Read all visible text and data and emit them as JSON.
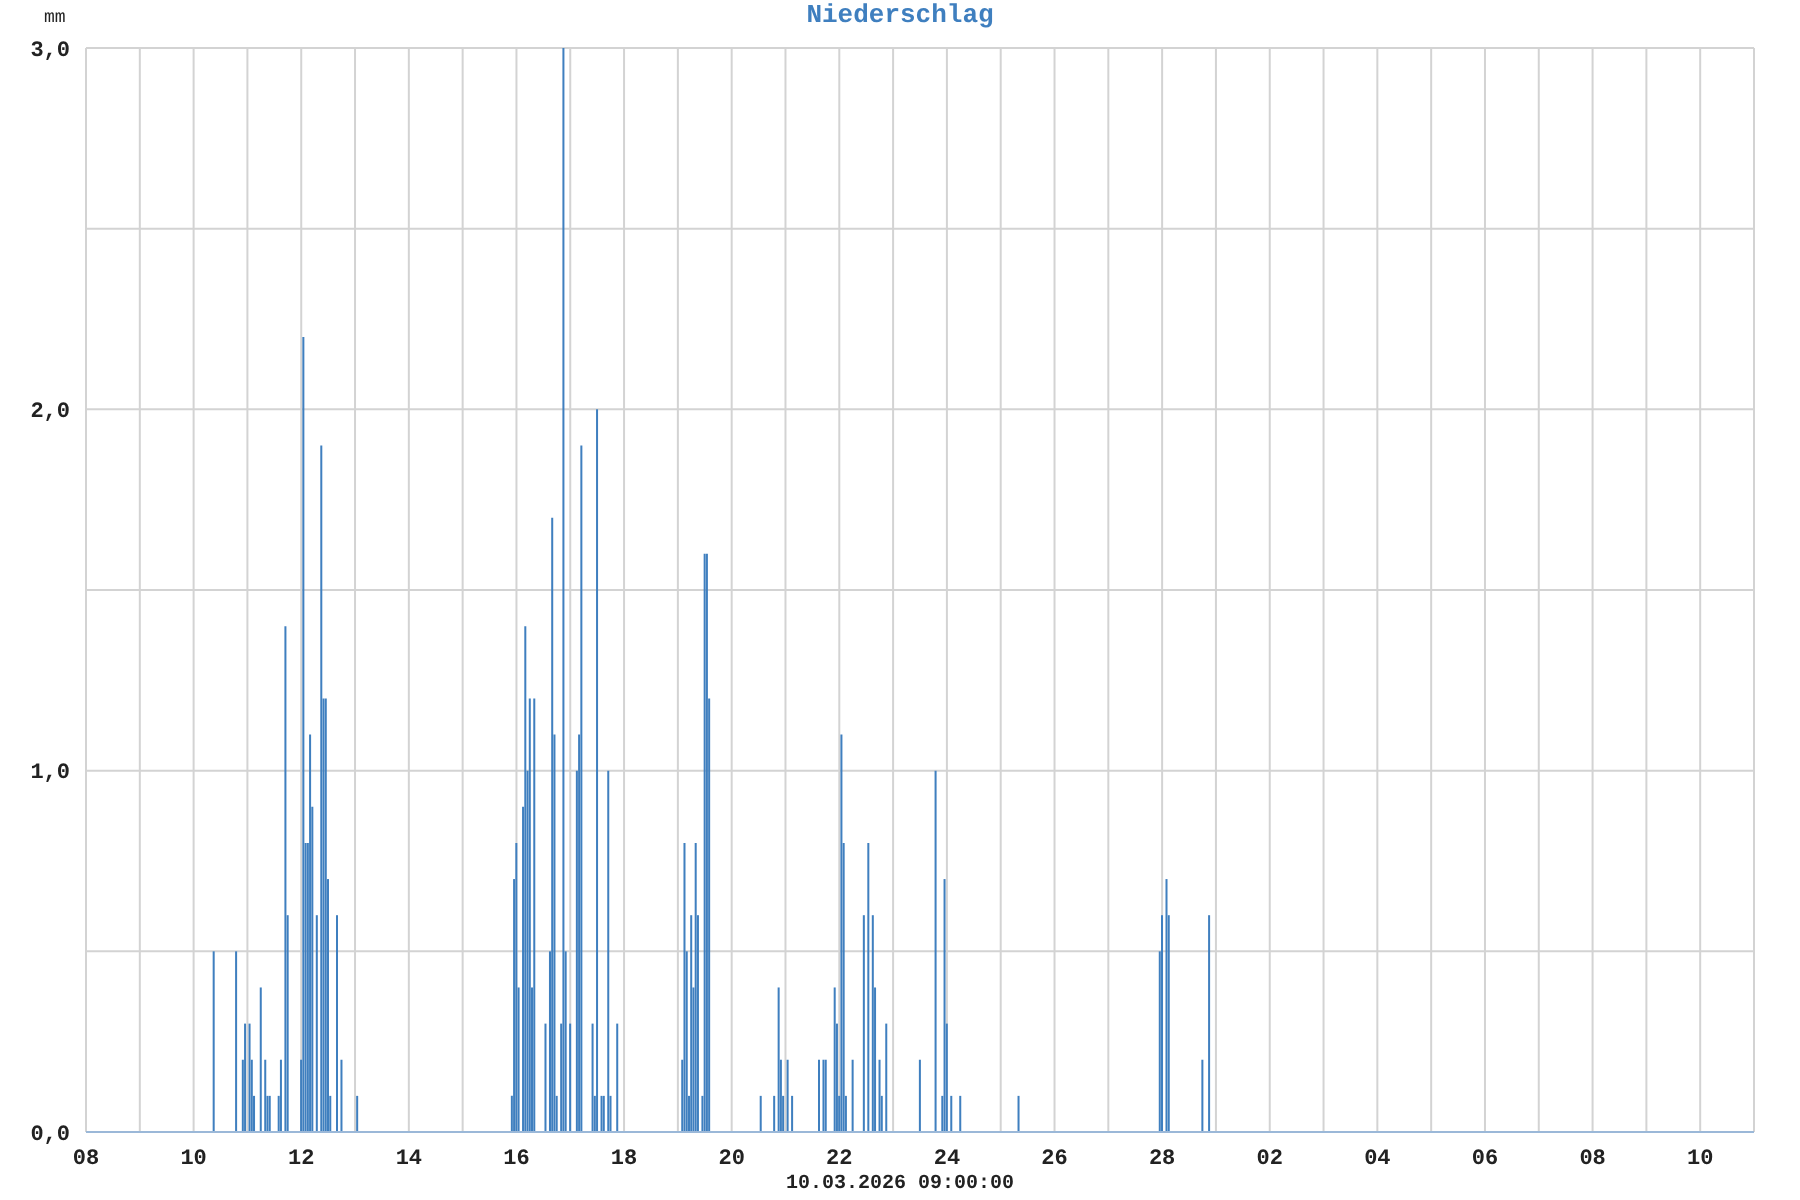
{
  "chart_data": {
    "type": "bar",
    "title": "Niederschlag",
    "ylabel": "mm",
    "xlabel": "10.03.2026 09:00:00",
    "color": "#3f7fbf",
    "grid": true,
    "x": [
      "2026-02-10T09:00",
      "2026-02-10T19:00",
      "2026-02-10T22:00",
      "2026-02-10T23:00",
      "2026-02-11T01:00",
      "2026-02-11T02:00",
      "2026-02-11T03:00",
      "2026-02-11T06:00",
      "2026-02-11T08:00",
      "2026-02-11T09:00",
      "2026-02-11T10:00",
      "2026-02-11T14:00",
      "2026-02-11T15:00",
      "2026-02-11T17:00",
      "2026-02-11T18:00",
      "2026-02-12T00:00",
      "2026-02-12T01:00",
      "2026-02-12T02:00",
      "2026-02-12T03:00",
      "2026-02-12T04:00",
      "2026-02-12T05:00",
      "2026-02-12T07:00",
      "2026-02-12T09:00",
      "2026-02-12T10:00",
      "2026-02-12T11:00",
      "2026-02-12T12:00",
      "2026-02-12T13:00",
      "2026-02-12T16:00",
      "2026-02-12T18:00",
      "2026-02-13T01:00",
      "2026-02-15T22:00",
      "2026-02-15T23:00",
      "2026-02-16T00:00",
      "2026-02-16T01:00",
      "2026-02-16T03:00",
      "2026-02-16T04:00",
      "2026-02-16T05:00",
      "2026-02-16T06:00",
      "2026-02-16T07:00",
      "2026-02-16T08:00",
      "2026-02-16T13:00",
      "2026-02-16T15:00",
      "2026-02-16T16:00",
      "2026-02-16T17:00",
      "2026-02-16T18:00",
      "2026-02-16T20:00",
      "2026-02-16T21:00",
      "2026-02-16T22:00",
      "2026-02-17T00:00",
      "2026-02-17T03:00",
      "2026-02-17T04:00",
      "2026-02-17T05:00",
      "2026-02-17T10:00",
      "2026-02-17T11:00",
      "2026-02-17T12:00",
      "2026-02-17T14:00",
      "2026-02-17T15:00",
      "2026-02-17T17:00",
      "2026-02-17T18:00",
      "2026-02-17T21:00",
      "2026-02-19T02:00",
      "2026-02-19T03:00",
      "2026-02-19T04:00",
      "2026-02-19T05:00",
      "2026-02-19T06:00",
      "2026-02-19T07:00",
      "2026-02-19T08:00",
      "2026-02-19T09:00",
      "2026-02-19T11:00",
      "2026-02-19T12:00",
      "2026-02-19T13:00",
      "2026-02-19T14:00",
      "2026-02-20T13:00",
      "2026-02-20T19:00",
      "2026-02-20T21:00",
      "2026-02-20T22:00",
      "2026-02-20T23:00",
      "2026-02-21T01:00",
      "2026-02-21T03:00",
      "2026-02-21T15:00",
      "2026-02-21T17:00",
      "2026-02-21T18:00",
      "2026-02-21T22:00",
      "2026-02-21T23:00",
      "2026-02-22T00:00",
      "2026-02-22T01:00",
      "2026-02-22T02:00",
      "2026-02-22T03:00",
      "2026-02-22T06:00",
      "2026-02-22T11:00",
      "2026-02-22T13:00",
      "2026-02-22T15:00",
      "2026-02-22T16:00",
      "2026-02-22T18:00",
      "2026-02-22T19:00",
      "2026-02-22T21:00",
      "2026-02-23T12:00",
      "2026-02-23T19:00",
      "2026-02-23T22:00",
      "2026-02-23T23:00",
      "2026-02-24T00:00",
      "2026-02-24T02:00",
      "2026-02-24T06:00",
      "2026-02-25T08:00",
      "2026-02-27T23:00",
      "2026-02-28T00:00",
      "2026-02-28T02:00",
      "2026-02-28T03:00",
      "2026-02-28T18:00",
      "2026-02-28T21:00"
    ],
    "values": [
      0.5,
      0.5,
      0.2,
      0.3,
      0.3,
      0.2,
      0.1,
      0.4,
      0.2,
      0.1,
      0.1,
      0.1,
      0.2,
      1.4,
      0.6,
      0.2,
      2.2,
      0.8,
      0.8,
      1.1,
      0.9,
      0.6,
      1.9,
      1.2,
      1.2,
      0.7,
      0.1,
      0.6,
      0.2,
      0.1,
      0.1,
      0.7,
      0.8,
      0.4,
      0.9,
      1.4,
      1.0,
      1.2,
      0.4,
      1.2,
      0.3,
      0.5,
      1.7,
      1.1,
      0.1,
      0.3,
      3.0,
      0.5,
      0.3,
      1.0,
      1.1,
      1.9,
      0.3,
      0.1,
      2.0,
      0.1,
      0.1,
      1.0,
      0.1,
      0.3,
      0.2,
      0.8,
      0.5,
      0.1,
      0.6,
      0.4,
      0.8,
      0.6,
      0.1,
      1.6,
      1.6,
      1.2,
      0.1,
      0.1,
      0.4,
      0.2,
      0.1,
      0.2,
      0.1,
      0.2,
      0.2,
      0.2,
      0.4,
      0.3,
      0.1,
      1.1,
      0.8,
      0.1,
      0.2,
      0.6,
      0.8,
      0.6,
      0.4,
      0.2,
      0.1,
      0.3,
      0.2,
      1.0,
      0.1,
      0.7,
      0.3,
      0.1,
      0.1,
      0.1,
      0.5,
      0.6,
      0.7,
      0.6,
      0.2,
      0.6
    ],
    "xlim": [
      "2026-02-08",
      "2026-03-11"
    ],
    "xticks": [
      {
        "value": "2026-02-08",
        "label": "08"
      },
      {
        "value": "2026-02-09",
        "label": null
      },
      {
        "value": "2026-02-10",
        "label": "10"
      },
      {
        "value": "2026-02-11",
        "label": null
      },
      {
        "value": "2026-02-12",
        "label": "12"
      },
      {
        "value": "2026-02-13",
        "label": null
      },
      {
        "value": "2026-02-14",
        "label": "14"
      },
      {
        "value": "2026-02-15",
        "label": null
      },
      {
        "value": "2026-02-16",
        "label": "16"
      },
      {
        "value": "2026-02-17",
        "label": null
      },
      {
        "value": "2026-02-18",
        "label": "18"
      },
      {
        "value": "2026-02-19",
        "label": null
      },
      {
        "value": "2026-02-20",
        "label": "20"
      },
      {
        "value": "2026-02-21",
        "label": null
      },
      {
        "value": "2026-02-22",
        "label": "22"
      },
      {
        "value": "2026-02-23",
        "label": null
      },
      {
        "value": "2026-02-24",
        "label": "24"
      },
      {
        "value": "2026-02-25",
        "label": null
      },
      {
        "value": "2026-02-26",
        "label": "26"
      },
      {
        "value": "2026-02-27",
        "label": null
      },
      {
        "value": "2026-02-28",
        "label": "28"
      },
      {
        "value": "2026-03-01",
        "label": null
      },
      {
        "value": "2026-03-02",
        "label": "02"
      },
      {
        "value": "2026-03-03",
        "label": null
      },
      {
        "value": "2026-03-04",
        "label": "04"
      },
      {
        "value": "2026-03-05",
        "label": null
      },
      {
        "value": "2026-03-06",
        "label": "06"
      },
      {
        "value": "2026-03-07",
        "label": null
      },
      {
        "value": "2026-03-08",
        "label": "08"
      },
      {
        "value": "2026-03-09",
        "label": null
      },
      {
        "value": "2026-03-10",
        "label": "10"
      }
    ],
    "ylim": [
      0,
      3
    ],
    "yticks": [
      {
        "value": 0,
        "label": "0,0"
      },
      {
        "value": 0.5,
        "label": null
      },
      {
        "value": 1,
        "label": "1,0"
      },
      {
        "value": 1.5,
        "label": null
      },
      {
        "value": 2,
        "label": "2,0"
      },
      {
        "value": 2.5,
        "label": null
      },
      {
        "value": 3,
        "label": "3,0"
      }
    ]
  }
}
